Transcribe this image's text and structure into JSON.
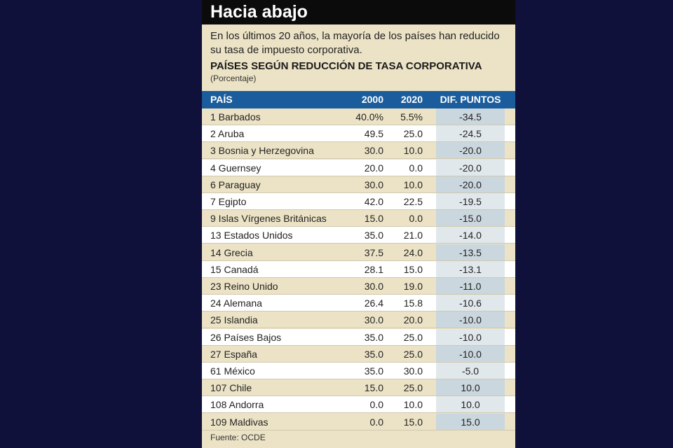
{
  "header": {
    "title": "Hacia abajo",
    "subtitle": "En los últimos 20 años, la mayoría de los países han reducido su tasa de impuesto corporativa.",
    "heading": "PAÍSES SEGÚN REDUCCIÓN DE TASA CORPORATIVA",
    "unit": "(Porcentaje)"
  },
  "table": {
    "columns": [
      "PAÍS",
      "2000",
      "2020",
      "DIF. PUNTOS"
    ],
    "rows": [
      [
        "1 Barbados",
        "40.0%",
        "5.5%",
        "-34.5"
      ],
      [
        "2 Aruba",
        "49.5",
        "25.0",
        "-24.5"
      ],
      [
        "3 Bosnia y Herzegovina",
        "30.0",
        "10.0",
        "-20.0"
      ],
      [
        "4 Guernsey",
        "20.0",
        "0.0",
        "-20.0"
      ],
      [
        "6 Paraguay",
        "30.0",
        "10.0",
        "-20.0"
      ],
      [
        "7 Egipto",
        "42.0",
        "22.5",
        "-19.5"
      ],
      [
        "9 Islas Vírgenes Británicas",
        "15.0",
        "0.0",
        "-15.0"
      ],
      [
        "13 Estados Unidos",
        "35.0",
        "21.0",
        "-14.0"
      ],
      [
        "14 Grecia",
        "37.5",
        "24.0",
        "-13.5"
      ],
      [
        "15 Canadá",
        "28.1",
        "15.0",
        "-13.1"
      ],
      [
        "23 Reino Unido",
        "30.0",
        "19.0",
        "-11.0"
      ],
      [
        "24 Alemana",
        "26.4",
        "15.8",
        "-10.6"
      ],
      [
        "25 Islandia",
        "30.0",
        "20.0",
        "-10.0"
      ],
      [
        "26 Países Bajos",
        "35.0",
        "25.0",
        "-10.0"
      ],
      [
        "27 España",
        "35.0",
        "25.0",
        "-10.0"
      ],
      [
        "61 México",
        "35.0",
        "30.0",
        "-5.0"
      ],
      [
        "107 Chile",
        "15.0",
        "25.0",
        "10.0"
      ],
      [
        "108 Andorra",
        "0.0",
        "10.0",
        "10.0"
      ],
      [
        "109 Maldivas",
        "0.0",
        "15.0",
        "15.0"
      ]
    ]
  },
  "footer": {
    "source": "Fuente: OCDE"
  }
}
